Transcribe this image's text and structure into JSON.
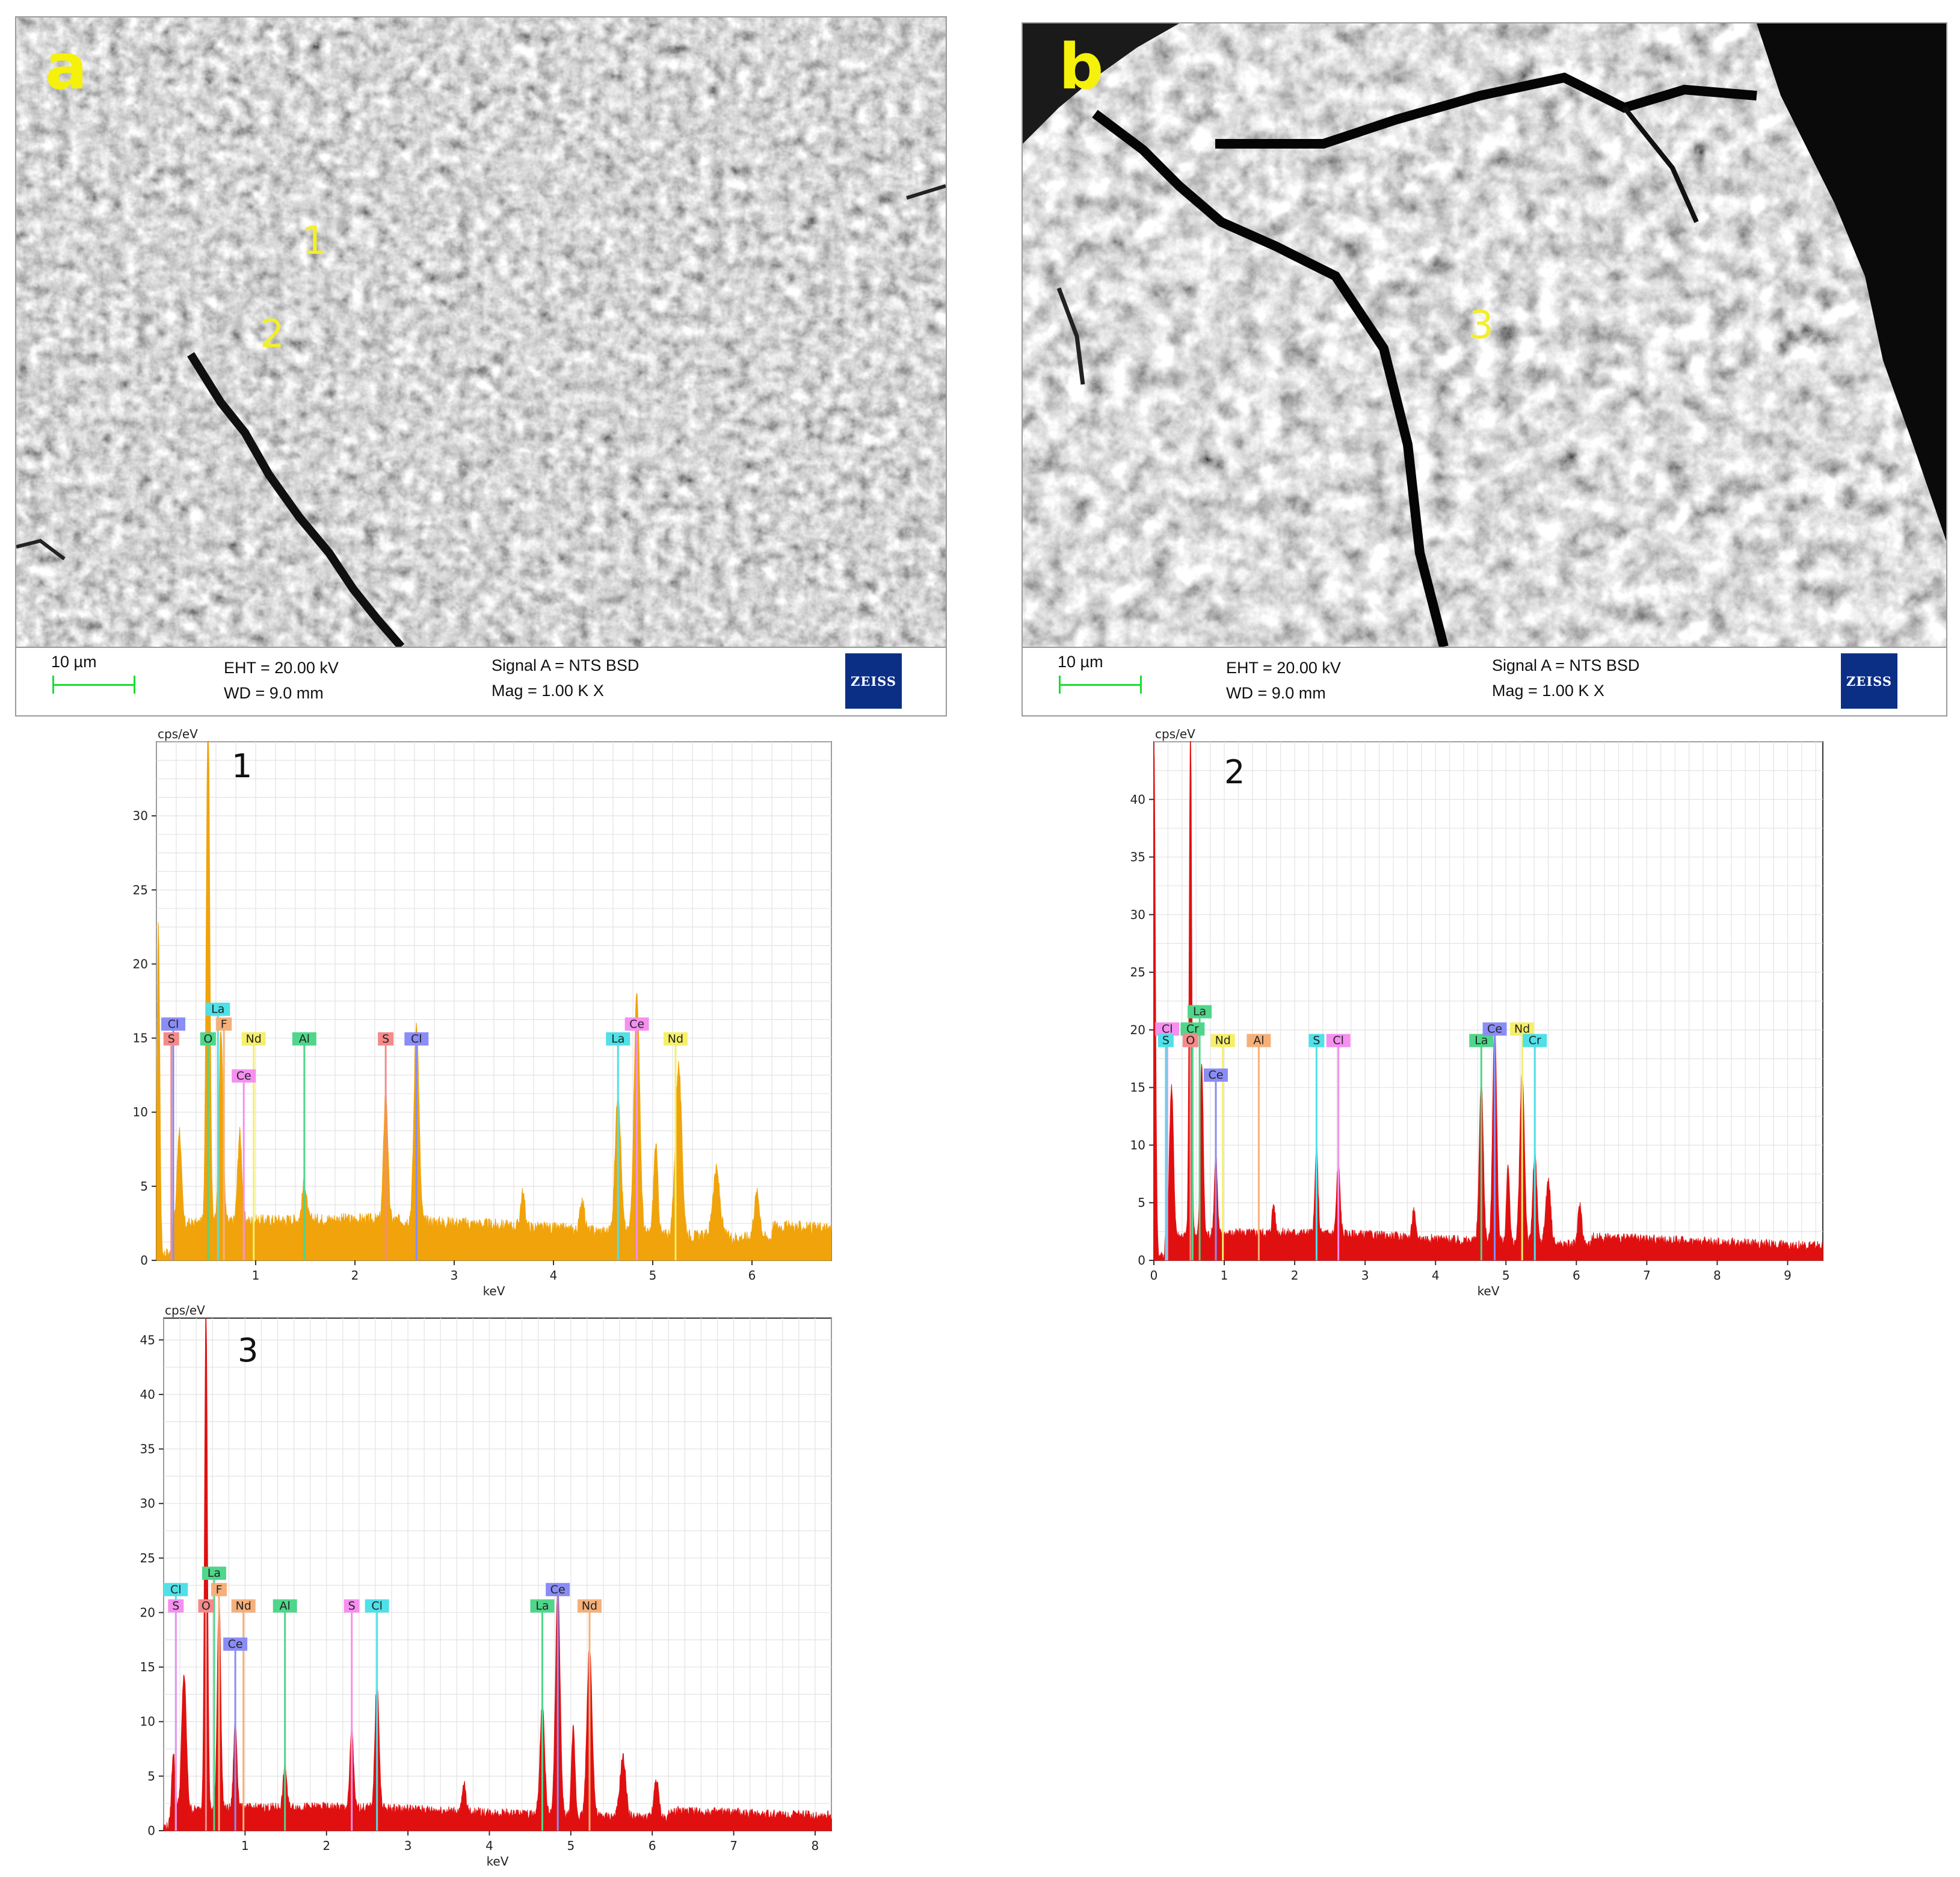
{
  "sem_panels": [
    {
      "letter": "a",
      "points": [
        "1",
        "2"
      ],
      "scale_label": "10 µm",
      "eht": "EHT = 20.00 kV",
      "wd": "WD =  9.0 mm",
      "signal": "Signal A = NTS BSD",
      "mag": "Mag =    1.00 K X",
      "brand": "ZEISS"
    },
    {
      "letter": "b",
      "points": [
        "3"
      ],
      "scale_label": "10 µm",
      "eht": "EHT = 20.00 kV",
      "wd": "WD =  9.0 mm",
      "signal": "Signal A = NTS BSD",
      "mag": "Mag =    1.00 K X",
      "brand": "ZEISS"
    }
  ],
  "colors": {
    "accent_yellow": "#f5f10a",
    "scalebar_green": "#1bdc32",
    "zeiss_blue": "#0c2f86",
    "spectrum_1": "#f0a30a",
    "spectrum_2": "#e01010",
    "spectrum_3": "#e01010"
  },
  "chart_data": [
    {
      "type": "area",
      "title": "1",
      "ylabel": "cps/eV",
      "xlabel": "keV",
      "xlim": [
        0,
        6.8
      ],
      "ylim": [
        0,
        35
      ],
      "x_ticks": [
        1,
        2,
        3,
        4,
        5,
        6
      ],
      "y_ticks": [
        0,
        5,
        10,
        15,
        20,
        25,
        30
      ],
      "grid": true,
      "fill_color": "#f0a30a",
      "baseline": 2.3,
      "peaks": [
        {
          "x": 0.02,
          "y": 22,
          "w": 0.02
        },
        {
          "x": 0.23,
          "y": 6.5,
          "w": 0.03
        },
        {
          "x": 0.52,
          "y": 35,
          "w": 0.025
        },
        {
          "x": 0.65,
          "y": 13,
          "w": 0.03
        },
        {
          "x": 0.84,
          "y": 6,
          "w": 0.03
        },
        {
          "x": 1.49,
          "y": 2.5,
          "w": 0.03
        },
        {
          "x": 2.31,
          "y": 8.8,
          "w": 0.03
        },
        {
          "x": 2.62,
          "y": 13.5,
          "w": 0.035
        },
        {
          "x": 3.69,
          "y": 2.3,
          "w": 0.03
        },
        {
          "x": 4.29,
          "y": 2.2,
          "w": 0.03
        },
        {
          "x": 4.65,
          "y": 9.5,
          "w": 0.04
        },
        {
          "x": 4.84,
          "y": 16.3,
          "w": 0.04
        },
        {
          "x": 5.03,
          "y": 6,
          "w": 0.03
        },
        {
          "x": 5.26,
          "y": 11.5,
          "w": 0.045
        },
        {
          "x": 5.64,
          "y": 4.5,
          "w": 0.05
        },
        {
          "x": 6.05,
          "y": 3,
          "w": 0.04
        }
      ],
      "element_markers": [
        {
          "el": "Cl",
          "x": 0.17,
          "y": 15.5,
          "color": "#8a8df5"
        },
        {
          "el": "S",
          "x": 0.15,
          "y": 14.5,
          "color": "#f58a8a"
        },
        {
          "el": "O",
          "x": 0.52,
          "y": 14.5,
          "color": "#4fd68a"
        },
        {
          "el": "La",
          "x": 0.62,
          "y": 16.5,
          "color": "#4fe0e8"
        },
        {
          "el": "F",
          "x": 0.68,
          "y": 15.5,
          "color": "#f5b07a"
        },
        {
          "el": "Nd",
          "x": 0.98,
          "y": 14.5,
          "color": "#f5ef6a"
        },
        {
          "el": "Ce",
          "x": 0.88,
          "y": 12,
          "color": "#f58ff0"
        },
        {
          "el": "Al",
          "x": 1.49,
          "y": 14.5,
          "color": "#4fd68a"
        },
        {
          "el": "S",
          "x": 2.31,
          "y": 14.5,
          "color": "#f58a8a"
        },
        {
          "el": "Cl",
          "x": 2.62,
          "y": 14.5,
          "color": "#8a8df5"
        },
        {
          "el": "La",
          "x": 4.65,
          "y": 14.5,
          "color": "#4fe0e8"
        },
        {
          "el": "Ce",
          "x": 4.84,
          "y": 15.5,
          "color": "#f58ff0"
        },
        {
          "el": "Nd",
          "x": 5.23,
          "y": 14.5,
          "color": "#f5ef6a"
        }
      ]
    },
    {
      "type": "area",
      "title": "2",
      "ylabel": "cps/eV",
      "xlabel": "keV",
      "xlim": [
        0,
        9.5
      ],
      "ylim": [
        0,
        45
      ],
      "x_ticks": [
        0,
        1,
        2,
        3,
        4,
        5,
        6,
        7,
        8,
        9
      ],
      "y_ticks": [
        0,
        5,
        10,
        15,
        20,
        25,
        30,
        35,
        40
      ],
      "grid": true,
      "fill_color": "#e01010",
      "baseline": 2.0,
      "peaks": [
        {
          "x": 0.0,
          "y": 45,
          "w": 0.03
        },
        {
          "x": 0.25,
          "y": 13,
          "w": 0.04
        },
        {
          "x": 0.52,
          "y": 45,
          "w": 0.025
        },
        {
          "x": 0.68,
          "y": 15,
          "w": 0.03
        },
        {
          "x": 0.88,
          "y": 7,
          "w": 0.03
        },
        {
          "x": 1.7,
          "y": 2.5,
          "w": 0.03
        },
        {
          "x": 2.31,
          "y": 7.5,
          "w": 0.03
        },
        {
          "x": 2.62,
          "y": 6,
          "w": 0.035
        },
        {
          "x": 3.69,
          "y": 2.5,
          "w": 0.03
        },
        {
          "x": 4.65,
          "y": 14,
          "w": 0.04
        },
        {
          "x": 4.84,
          "y": 19,
          "w": 0.04
        },
        {
          "x": 5.03,
          "y": 7,
          "w": 0.03
        },
        {
          "x": 5.23,
          "y": 15,
          "w": 0.045
        },
        {
          "x": 5.41,
          "y": 8,
          "w": 0.04
        },
        {
          "x": 5.6,
          "y": 5.5,
          "w": 0.05
        },
        {
          "x": 6.05,
          "y": 3.5,
          "w": 0.04
        }
      ],
      "element_markers": [
        {
          "el": "Cl",
          "x": 0.19,
          "y": 19.5,
          "color": "#f58ff0"
        },
        {
          "el": "S",
          "x": 0.17,
          "y": 18.5,
          "color": "#4fe0e8"
        },
        {
          "el": "Cr",
          "x": 0.55,
          "y": 19.5,
          "color": "#4fd68a"
        },
        {
          "el": "La",
          "x": 0.65,
          "y": 21,
          "color": "#4fd68a"
        },
        {
          "el": "O",
          "x": 0.52,
          "y": 18.5,
          "color": "#f58a8a"
        },
        {
          "el": "Nd",
          "x": 0.98,
          "y": 18.5,
          "color": "#f5ef6a"
        },
        {
          "el": "Ce",
          "x": 0.88,
          "y": 15.5,
          "color": "#8a8df5"
        },
        {
          "el": "Al",
          "x": 1.49,
          "y": 18.5,
          "color": "#f5b07a"
        },
        {
          "el": "S",
          "x": 2.31,
          "y": 18.5,
          "color": "#4fe0e8"
        },
        {
          "el": "Cl",
          "x": 2.62,
          "y": 18.5,
          "color": "#f58ff0"
        },
        {
          "el": "La",
          "x": 4.65,
          "y": 18.5,
          "color": "#4fd68a"
        },
        {
          "el": "Ce",
          "x": 4.84,
          "y": 19.5,
          "color": "#8a8df5"
        },
        {
          "el": "Nd",
          "x": 5.23,
          "y": 19.5,
          "color": "#f5ef6a"
        },
        {
          "el": "Cr",
          "x": 5.41,
          "y": 18.5,
          "color": "#4fe0e8"
        }
      ]
    },
    {
      "type": "area",
      "title": "3",
      "ylabel": "cps/eV",
      "xlabel": "keV",
      "xlim": [
        0,
        8.2
      ],
      "ylim": [
        0,
        47
      ],
      "x_ticks": [
        1,
        2,
        3,
        4,
        5,
        6,
        7,
        8
      ],
      "y_ticks": [
        0,
        5,
        10,
        15,
        20,
        25,
        30,
        35,
        40,
        45
      ],
      "grid": true,
      "fill_color": "#e01010",
      "baseline": 1.8,
      "peaks": [
        {
          "x": 0.12,
          "y": 7,
          "w": 0.03
        },
        {
          "x": 0.25,
          "y": 12.5,
          "w": 0.04
        },
        {
          "x": 0.52,
          "y": 46.5,
          "w": 0.025
        },
        {
          "x": 0.68,
          "y": 19.5,
          "w": 0.03
        },
        {
          "x": 0.88,
          "y": 8,
          "w": 0.03
        },
        {
          "x": 1.49,
          "y": 4,
          "w": 0.03
        },
        {
          "x": 2.31,
          "y": 7.5,
          "w": 0.03
        },
        {
          "x": 2.62,
          "y": 11.5,
          "w": 0.035
        },
        {
          "x": 3.69,
          "y": 2.5,
          "w": 0.03
        },
        {
          "x": 4.65,
          "y": 10,
          "w": 0.04
        },
        {
          "x": 4.84,
          "y": 21,
          "w": 0.04
        },
        {
          "x": 5.03,
          "y": 8,
          "w": 0.03
        },
        {
          "x": 5.23,
          "y": 15.5,
          "w": 0.045
        },
        {
          "x": 5.64,
          "y": 5.5,
          "w": 0.05
        },
        {
          "x": 6.05,
          "y": 3.5,
          "w": 0.04
        }
      ],
      "element_markers": [
        {
          "el": "Cl",
          "x": 0.15,
          "y": 21.5,
          "color": "#4fe0e8"
        },
        {
          "el": "S",
          "x": 0.15,
          "y": 20,
          "color": "#f58ff0"
        },
        {
          "el": "La",
          "x": 0.62,
          "y": 23,
          "color": "#4fd68a"
        },
        {
          "el": "F",
          "x": 0.68,
          "y": 21.5,
          "color": "#f5b07a"
        },
        {
          "el": "O",
          "x": 0.52,
          "y": 20,
          "color": "#f58a8a"
        },
        {
          "el": "Nd",
          "x": 0.98,
          "y": 20,
          "color": "#f5b07a"
        },
        {
          "el": "Ce",
          "x": 0.88,
          "y": 16.5,
          "color": "#8a8df5"
        },
        {
          "el": "Al",
          "x": 1.49,
          "y": 20,
          "color": "#4fd68a"
        },
        {
          "el": "S",
          "x": 2.31,
          "y": 20,
          "color": "#f58ff0"
        },
        {
          "el": "Cl",
          "x": 2.62,
          "y": 20,
          "color": "#4fe0e8"
        },
        {
          "el": "La",
          "x": 4.65,
          "y": 20,
          "color": "#4fd68a"
        },
        {
          "el": "Ce",
          "x": 4.84,
          "y": 21.5,
          "color": "#8a8df5"
        },
        {
          "el": "Nd",
          "x": 5.23,
          "y": 20,
          "color": "#f5b07a"
        }
      ]
    }
  ]
}
